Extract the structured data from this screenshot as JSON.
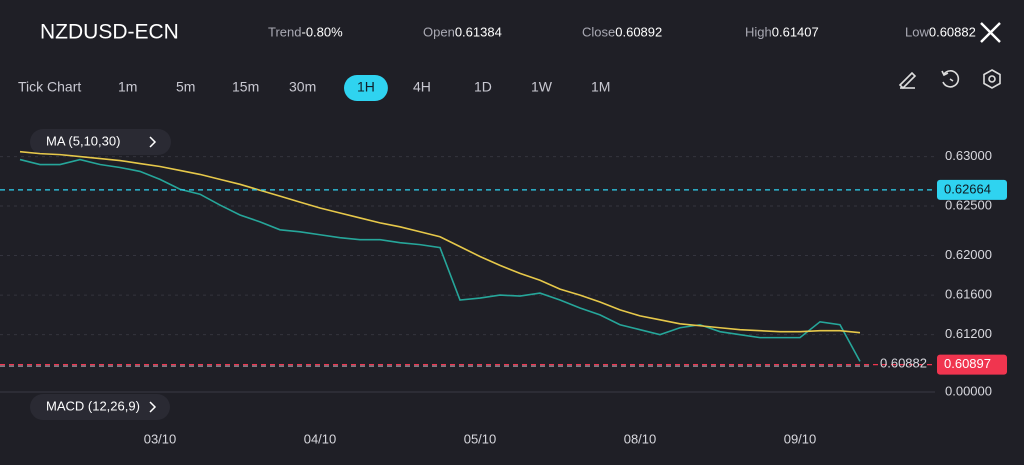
{
  "header": {
    "symbol": "NZDUSD-ECN",
    "stats": [
      {
        "label": "Trend",
        "value": "-0.80%"
      },
      {
        "label": "Open",
        "value": "0.61384"
      },
      {
        "label": "Close",
        "value": "0.60892"
      },
      {
        "label": "High",
        "value": "0.61407"
      },
      {
        "label": "Low",
        "value": "0.60882"
      }
    ]
  },
  "timeframes": [
    "Tick Chart",
    "1m",
    "5m",
    "15m",
    "30m",
    "1H",
    "4H",
    "1D",
    "1W",
    "1M"
  ],
  "active_timeframe": 5,
  "indicators": {
    "ma": "MA (5,10,30)",
    "macd": "MACD (12,26,9)",
    "macd_yticks": [
      {
        "value": 0,
        "label": "0.00000"
      }
    ]
  },
  "chart_data": {
    "type": "line",
    "categories": [
      null,
      null,
      null,
      null,
      null,
      null,
      null,
      "03/10",
      null,
      null,
      null,
      null,
      null,
      null,
      null,
      "04/10",
      null,
      null,
      null,
      null,
      null,
      null,
      null,
      "05/10",
      null,
      null,
      null,
      null,
      null,
      null,
      null,
      "08/10",
      null,
      null,
      null,
      null,
      null,
      null,
      null,
      "09/10",
      null,
      null,
      null
    ],
    "series": [
      {
        "name": "Close",
        "color": "#26a69a",
        "values": [
          0.6297,
          0.6292,
          0.6292,
          0.6297,
          0.6292,
          0.6289,
          0.6285,
          0.6277,
          0.6267,
          0.6262,
          0.6251,
          0.6241,
          0.6234,
          0.6226,
          0.6224,
          0.6221,
          0.6218,
          0.6216,
          0.6216,
          0.6213,
          0.6211,
          0.6208,
          0.6155,
          0.6157,
          0.616,
          0.6159,
          0.6162,
          0.6155,
          0.6147,
          0.614,
          0.613,
          0.6125,
          0.612,
          0.6127,
          0.613,
          0.6123,
          0.612,
          0.6117,
          0.6117,
          0.6117,
          0.6133,
          0.613,
          0.6093
        ]
      },
      {
        "name": "MA30",
        "color": "#e6c84a",
        "values": [
          0.6305,
          0.6303,
          0.6302,
          0.63,
          0.6298,
          0.6296,
          0.6293,
          0.629,
          0.6286,
          0.6282,
          0.6277,
          0.6272,
          0.6266,
          0.626,
          0.6254,
          0.6248,
          0.6243,
          0.6238,
          0.6233,
          0.6229,
          0.6224,
          0.6219,
          0.6209,
          0.6199,
          0.619,
          0.6182,
          0.6175,
          0.6166,
          0.616,
          0.6153,
          0.6145,
          0.6139,
          0.6135,
          0.6131,
          0.6129,
          0.6127,
          0.6125,
          0.6124,
          0.6123,
          0.6123,
          0.6124,
          0.6124,
          0.6122
        ]
      }
    ],
    "ylim": [
      0.6059,
      0.6337
    ],
    "yticks": [
      {
        "value": 0.63,
        "label": "0.63000"
      },
      {
        "value": 0.625,
        "label": "0.62500"
      },
      {
        "value": 0.62,
        "label": "0.62000"
      },
      {
        "value": 0.616,
        "label": "0.61600"
      },
      {
        "value": 0.612,
        "label": "0.61200"
      }
    ],
    "grid": true,
    "markers": [
      {
        "value": 0.62664,
        "label": "0.62664",
        "color": "#2fd3f0"
      },
      {
        "value": 0.60897,
        "label": "0.60897",
        "color": "#f0354f"
      },
      {
        "value": 0.60882,
        "label": "0.60882",
        "color": "#9a9aa4"
      }
    ]
  }
}
